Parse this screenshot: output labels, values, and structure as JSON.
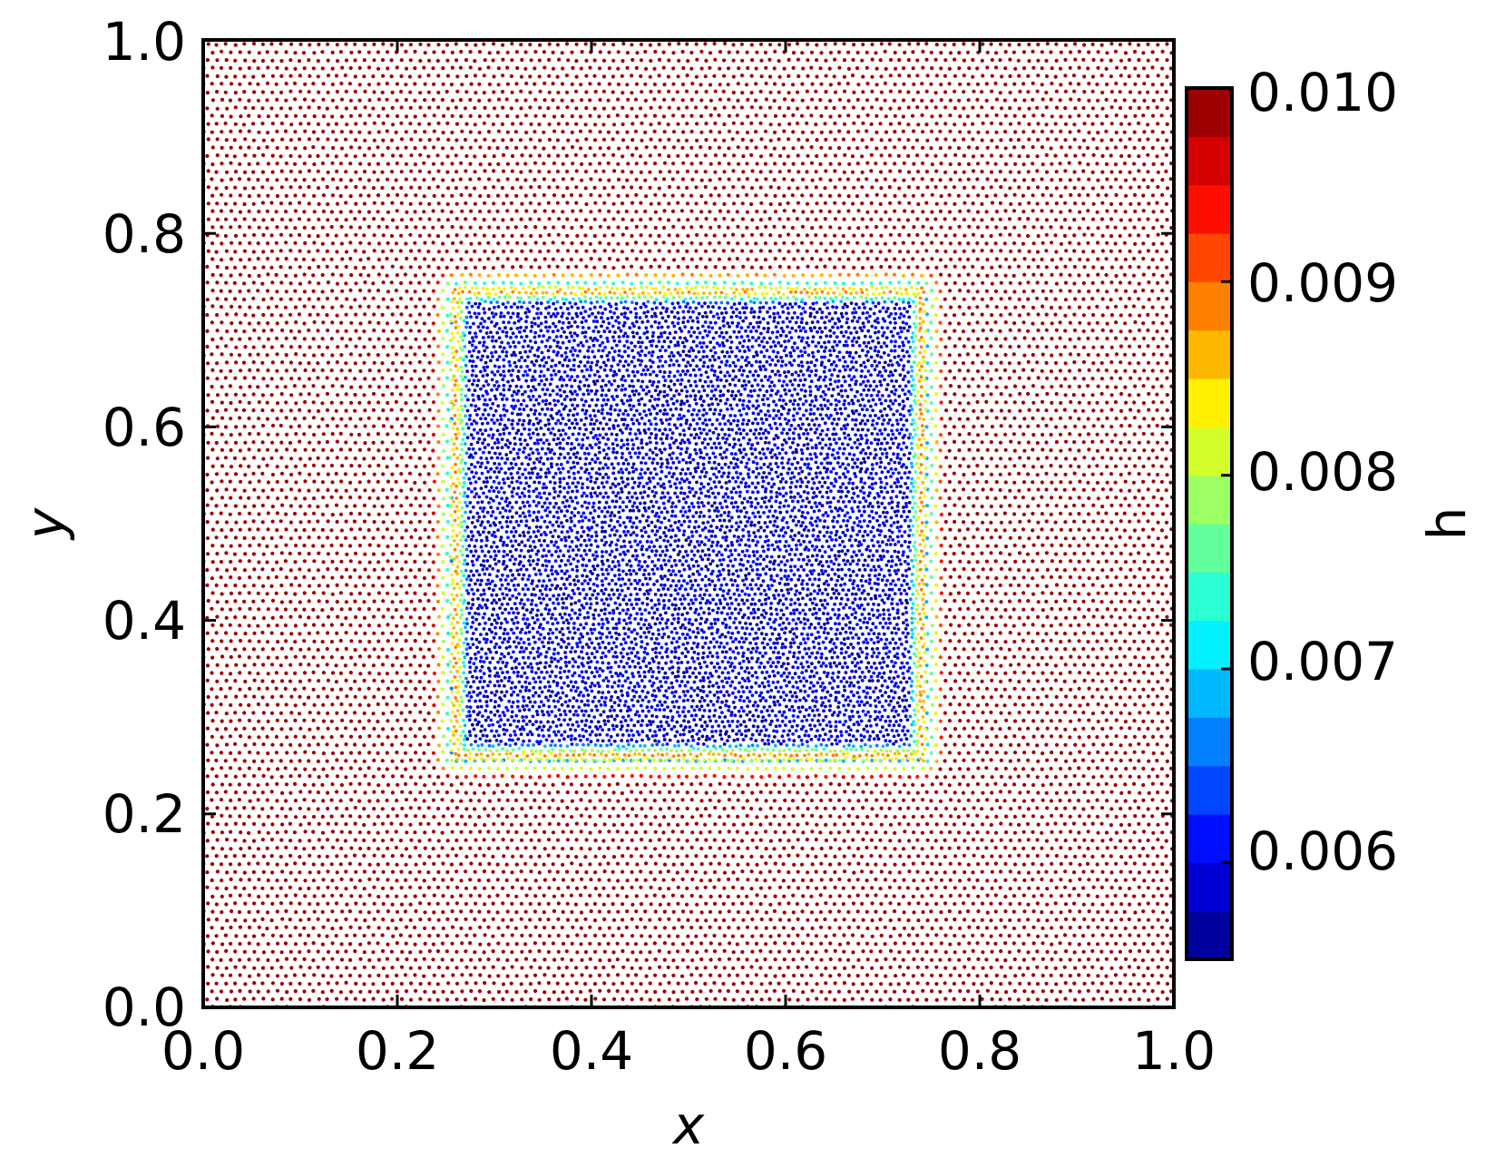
{
  "chart_data": {
    "type": "scatter",
    "title": "",
    "xlabel": "x",
    "ylabel": "y",
    "xlim": [
      0.0,
      1.0
    ],
    "ylim": [
      0.0,
      1.0
    ],
    "xticks": [
      "0.0",
      "0.2",
      "0.4",
      "0.6",
      "0.8",
      "1.0"
    ],
    "yticks": [
      "0.0",
      "0.2",
      "0.4",
      "0.6",
      "0.8",
      "1.0"
    ],
    "grid": false,
    "colormap": "jet",
    "colorbar": {
      "label": "h",
      "range": [
        0.0055,
        0.01
      ],
      "ticks": [
        "0.006",
        "0.007",
        "0.008",
        "0.009",
        "0.010"
      ],
      "levels": 18
    },
    "field": {
      "description": "particle spacing h; fine region inside square, coarse outside",
      "region": {
        "x": [
          0.26,
          0.74
        ],
        "y": [
          0.26,
          0.74
        ]
      },
      "h_inside": 0.006,
      "h_outside": 0.01,
      "transition_width": 0.025
    }
  }
}
